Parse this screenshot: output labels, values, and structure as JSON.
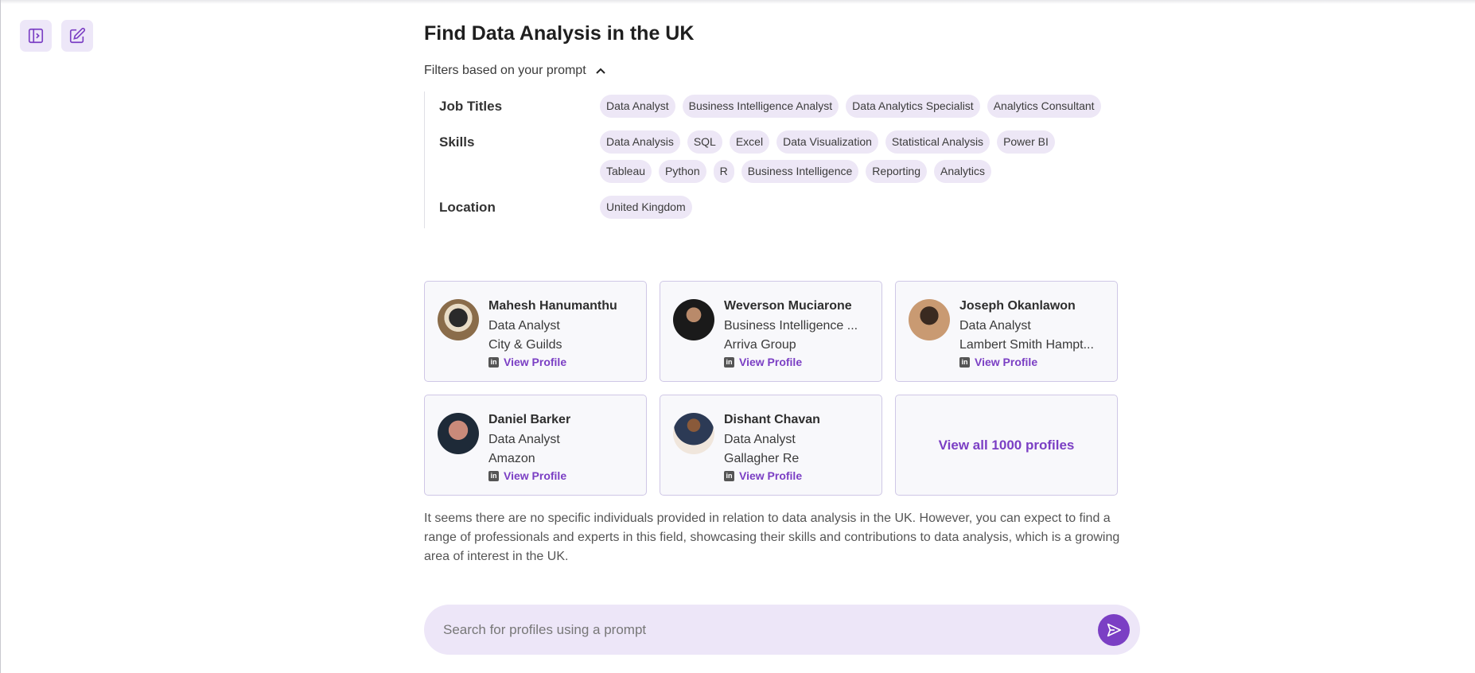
{
  "toolbar": {
    "sidebar_toggle_icon": "sidebar-toggle-icon",
    "new_chat_icon": "edit-icon"
  },
  "page": {
    "title": "Find Data Analysis in the UK",
    "filters_toggle_label": "Filters based on your prompt"
  },
  "filters": {
    "job_titles": {
      "label": "Job Titles",
      "chips": [
        "Data Analyst",
        "Business Intelligence Analyst",
        "Data Analytics Specialist",
        "Analytics Consultant"
      ]
    },
    "skills": {
      "label": "Skills",
      "chips": [
        "Data Analysis",
        "SQL",
        "Excel",
        "Data Visualization",
        "Statistical Analysis",
        "Power BI",
        "Tableau",
        "Python",
        "R",
        "Business Intelligence",
        "Reporting",
        "Analytics"
      ]
    },
    "location": {
      "label": "Location",
      "chips": [
        "United Kingdom"
      ]
    }
  },
  "profiles": [
    {
      "name": "Mahesh Hanumanthu",
      "title": "Data Analyst",
      "company": "City & Guilds",
      "link_label": "View Profile"
    },
    {
      "name": "Weverson Muciarone",
      "title": "Business Intelligence ...",
      "company": "Arriva Group",
      "link_label": "View Profile"
    },
    {
      "name": "Joseph Okanlawon",
      "title": "Data Analyst",
      "company": "Lambert Smith Hampt...",
      "link_label": "View Profile"
    },
    {
      "name": "Daniel Barker",
      "title": "Data Analyst",
      "company": "Amazon",
      "link_label": "View Profile"
    },
    {
      "name": "Dishant Chavan",
      "title": "Data Analyst",
      "company": "Gallagher Re",
      "link_label": "View Profile"
    }
  ],
  "view_all_label": "View all 1000 profiles",
  "summary": "It seems there are no specific individuals provided in relation to data analysis in the UK. However, you can expect to find a range of professionals and experts in this field, showcasing their skills and contributions to data analysis, which is a growing area of interest in the UK.",
  "search": {
    "placeholder": "Search for profiles using a prompt",
    "value": ""
  },
  "colors": {
    "accent": "#7b3fc4",
    "chip_bg": "#ede7f6",
    "card_bg": "#f8f8fb",
    "search_bg": "#ede6f8"
  }
}
